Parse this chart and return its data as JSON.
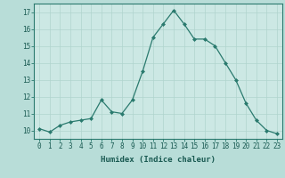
{
  "x": [
    0,
    1,
    2,
    3,
    4,
    5,
    6,
    7,
    8,
    9,
    10,
    11,
    12,
    13,
    14,
    15,
    16,
    17,
    18,
    19,
    20,
    21,
    22,
    23
  ],
  "y": [
    10.1,
    9.9,
    10.3,
    10.5,
    10.6,
    10.7,
    11.8,
    11.1,
    11.0,
    11.8,
    13.5,
    15.5,
    16.3,
    17.1,
    16.3,
    15.4,
    15.4,
    15.0,
    14.0,
    13.0,
    11.6,
    10.6,
    10.0,
    9.8
  ],
  "xlabel": "Humidex (Indice chaleur)",
  "xlim": [
    -0.5,
    23.5
  ],
  "ylim": [
    9.5,
    17.5
  ],
  "yticks": [
    10,
    11,
    12,
    13,
    14,
    15,
    16,
    17
  ],
  "xticks": [
    0,
    1,
    2,
    3,
    4,
    5,
    6,
    7,
    8,
    9,
    10,
    11,
    12,
    13,
    14,
    15,
    16,
    17,
    18,
    19,
    20,
    21,
    22,
    23
  ],
  "line_color": "#2a7a6e",
  "marker": "D",
  "marker_size": 2.0,
  "bg_color": "#b8ddd8",
  "plot_bg_color": "#cce8e4",
  "grid_color": "#b0d4ce",
  "spine_color": "#2a7a6e",
  "tick_label_color": "#1a5a52",
  "label_color": "#1a5a52",
  "tick_fontsize": 5.5,
  "xlabel_fontsize": 6.5
}
